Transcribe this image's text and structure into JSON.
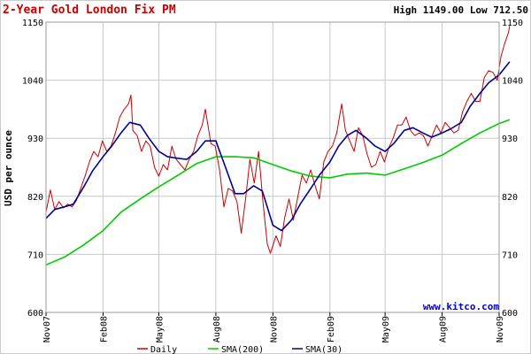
{
  "chart_data": {
    "type": "line",
    "title": "2-Year Gold London Fix PM",
    "high_low": "High 1149.00 Low 712.50",
    "ylabel": "USD per ounce",
    "xlabel": "",
    "ylim": [
      600,
      1150
    ],
    "y_ticks": [
      600,
      710,
      820,
      930,
      1040,
      1150
    ],
    "x_ticks": [
      {
        "label": "Nov07",
        "date": "2007-11-01"
      },
      {
        "label": "Feb08",
        "date": "2008-02-01"
      },
      {
        "label": "May08",
        "date": "2008-05-01"
      },
      {
        "label": "Aug08",
        "date": "2008-08-01"
      },
      {
        "label": "Nov08",
        "date": "2008-11-01"
      },
      {
        "label": "Feb09",
        "date": "2009-02-01"
      },
      {
        "label": "May09",
        "date": "2009-05-01"
      },
      {
        "label": "Aug09",
        "date": "2009-08-01"
      },
      {
        "label": "Nov09",
        "date": "2009-11-01"
      }
    ],
    "xlim": [
      "2007-11-01",
      "2009-11-01"
    ],
    "grid": true,
    "legend_position": "bottom",
    "watermark": "www.kitco.com",
    "colors": {
      "title": "#cc0000",
      "watermark": "#0000cc",
      "grid": "#c8c8c8"
    },
    "series": [
      {
        "name": "Daily",
        "color": "#cc0000",
        "points": [
          [
            "2007-11-01",
            790
          ],
          [
            "2007-11-08",
            832
          ],
          [
            "2007-11-15",
            795
          ],
          [
            "2007-11-22",
            810
          ],
          [
            "2007-11-29",
            798
          ],
          [
            "2007-12-06",
            805
          ],
          [
            "2007-12-13",
            800
          ],
          [
            "2007-12-20",
            812
          ],
          [
            "2007-12-27",
            835
          ],
          [
            "2008-01-03",
            858
          ],
          [
            "2008-01-10",
            885
          ],
          [
            "2008-01-17",
            905
          ],
          [
            "2008-01-24",
            895
          ],
          [
            "2008-01-31",
            925
          ],
          [
            "2008-02-07",
            905
          ],
          [
            "2008-02-14",
            915
          ],
          [
            "2008-02-21",
            940
          ],
          [
            "2008-02-28",
            970
          ],
          [
            "2008-03-06",
            985
          ],
          [
            "2008-03-13",
            995
          ],
          [
            "2008-03-17",
            1012
          ],
          [
            "2008-03-20",
            945
          ],
          [
            "2008-03-27",
            935
          ],
          [
            "2008-04-03",
            905
          ],
          [
            "2008-04-10",
            925
          ],
          [
            "2008-04-17",
            915
          ],
          [
            "2008-04-24",
            875
          ],
          [
            "2008-05-01",
            858
          ],
          [
            "2008-05-08",
            880
          ],
          [
            "2008-05-15",
            870
          ],
          [
            "2008-05-22",
            915
          ],
          [
            "2008-05-29",
            890
          ],
          [
            "2008-06-05",
            880
          ],
          [
            "2008-06-12",
            870
          ],
          [
            "2008-06-19",
            890
          ],
          [
            "2008-06-26",
            905
          ],
          [
            "2008-07-03",
            935
          ],
          [
            "2008-07-10",
            955
          ],
          [
            "2008-07-15",
            985
          ],
          [
            "2008-07-24",
            920
          ],
          [
            "2008-07-31",
            915
          ],
          [
            "2008-08-07",
            870
          ],
          [
            "2008-08-14",
            800
          ],
          [
            "2008-08-21",
            835
          ],
          [
            "2008-08-28",
            830
          ],
          [
            "2008-09-04",
            810
          ],
          [
            "2008-09-11",
            750
          ],
          [
            "2008-09-18",
            815
          ],
          [
            "2008-09-25",
            890
          ],
          [
            "2008-10-02",
            845
          ],
          [
            "2008-10-09",
            905
          ],
          [
            "2008-10-16",
            810
          ],
          [
            "2008-10-23",
            730
          ],
          [
            "2008-10-28",
            712
          ],
          [
            "2008-11-06",
            745
          ],
          [
            "2008-11-13",
            725
          ],
          [
            "2008-11-20",
            780
          ],
          [
            "2008-11-27",
            815
          ],
          [
            "2008-12-04",
            775
          ],
          [
            "2008-12-11",
            818
          ],
          [
            "2008-12-18",
            860
          ],
          [
            "2008-12-25",
            845
          ],
          [
            "2009-01-01",
            870
          ],
          [
            "2009-01-08",
            840
          ],
          [
            "2009-01-15",
            815
          ],
          [
            "2009-01-22",
            885
          ],
          [
            "2009-01-29",
            905
          ],
          [
            "2009-02-05",
            915
          ],
          [
            "2009-02-12",
            940
          ],
          [
            "2009-02-20",
            995
          ],
          [
            "2009-02-26",
            945
          ],
          [
            "2009-03-05",
            925
          ],
          [
            "2009-03-12",
            905
          ],
          [
            "2009-03-19",
            950
          ],
          [
            "2009-03-26",
            935
          ],
          [
            "2009-04-02",
            900
          ],
          [
            "2009-04-09",
            875
          ],
          [
            "2009-04-16",
            880
          ],
          [
            "2009-04-23",
            905
          ],
          [
            "2009-04-30",
            885
          ],
          [
            "2009-05-07",
            912
          ],
          [
            "2009-05-14",
            930
          ],
          [
            "2009-05-21",
            955
          ],
          [
            "2009-05-28",
            955
          ],
          [
            "2009-06-04",
            970
          ],
          [
            "2009-06-11",
            945
          ],
          [
            "2009-06-18",
            935
          ],
          [
            "2009-06-25",
            940
          ],
          [
            "2009-07-02",
            935
          ],
          [
            "2009-07-09",
            915
          ],
          [
            "2009-07-16",
            935
          ],
          [
            "2009-07-23",
            955
          ],
          [
            "2009-07-30",
            940
          ],
          [
            "2009-08-06",
            960
          ],
          [
            "2009-08-13",
            950
          ],
          [
            "2009-08-20",
            940
          ],
          [
            "2009-08-27",
            945
          ],
          [
            "2009-09-03",
            980
          ],
          [
            "2009-09-10",
            1000
          ],
          [
            "2009-09-17",
            1015
          ],
          [
            "2009-09-24",
            1000
          ],
          [
            "2009-10-01",
            1000
          ],
          [
            "2009-10-08",
            1045
          ],
          [
            "2009-10-15",
            1058
          ],
          [
            "2009-10-22",
            1055
          ],
          [
            "2009-10-29",
            1040
          ],
          [
            "2009-11-04",
            1085
          ],
          [
            "2009-11-10",
            1110
          ],
          [
            "2009-11-16",
            1130
          ],
          [
            "2009-11-18",
            1143
          ]
        ]
      },
      {
        "name": "SMA(200)",
        "color": "#00cc00",
        "points": [
          [
            "2007-11-01",
            690
          ],
          [
            "2007-12-01",
            705
          ],
          [
            "2008-01-01",
            728
          ],
          [
            "2008-02-01",
            755
          ],
          [
            "2008-03-01",
            790
          ],
          [
            "2008-04-01",
            815
          ],
          [
            "2008-05-01",
            838
          ],
          [
            "2008-06-01",
            860
          ],
          [
            "2008-07-01",
            882
          ],
          [
            "2008-08-01",
            895
          ],
          [
            "2008-09-01",
            895
          ],
          [
            "2008-10-01",
            893
          ],
          [
            "2008-11-01",
            880
          ],
          [
            "2008-12-01",
            868
          ],
          [
            "2009-01-01",
            858
          ],
          [
            "2009-02-01",
            855
          ],
          [
            "2009-03-01",
            862
          ],
          [
            "2009-04-01",
            864
          ],
          [
            "2009-05-01",
            860
          ],
          [
            "2009-06-01",
            872
          ],
          [
            "2009-07-01",
            884
          ],
          [
            "2009-08-01",
            898
          ],
          [
            "2009-09-01",
            920
          ],
          [
            "2009-10-01",
            940
          ],
          [
            "2009-11-01",
            958
          ],
          [
            "2009-11-18",
            965
          ]
        ]
      },
      {
        "name": "SMA(30)",
        "color": "#000099",
        "points": [
          [
            "2007-11-01",
            778
          ],
          [
            "2007-11-15",
            795
          ],
          [
            "2007-12-01",
            800
          ],
          [
            "2007-12-15",
            805
          ],
          [
            "2008-01-01",
            838
          ],
          [
            "2008-01-15",
            868
          ],
          [
            "2008-02-01",
            895
          ],
          [
            "2008-02-15",
            915
          ],
          [
            "2008-03-01",
            940
          ],
          [
            "2008-03-15",
            960
          ],
          [
            "2008-04-01",
            955
          ],
          [
            "2008-04-15",
            930
          ],
          [
            "2008-05-01",
            905
          ],
          [
            "2008-05-15",
            895
          ],
          [
            "2008-06-01",
            892
          ],
          [
            "2008-06-15",
            890
          ],
          [
            "2008-07-01",
            905
          ],
          [
            "2008-07-15",
            925
          ],
          [
            "2008-08-01",
            925
          ],
          [
            "2008-08-15",
            880
          ],
          [
            "2008-09-01",
            825
          ],
          [
            "2008-09-15",
            825
          ],
          [
            "2008-10-01",
            840
          ],
          [
            "2008-10-15",
            830
          ],
          [
            "2008-11-01",
            765
          ],
          [
            "2008-11-15",
            755
          ],
          [
            "2008-12-01",
            775
          ],
          [
            "2008-12-15",
            805
          ],
          [
            "2009-01-01",
            835
          ],
          [
            "2009-01-15",
            860
          ],
          [
            "2009-02-01",
            885
          ],
          [
            "2009-02-15",
            915
          ],
          [
            "2009-03-01",
            935
          ],
          [
            "2009-03-15",
            945
          ],
          [
            "2009-04-01",
            930
          ],
          [
            "2009-04-15",
            915
          ],
          [
            "2009-05-01",
            905
          ],
          [
            "2009-05-15",
            920
          ],
          [
            "2009-06-01",
            945
          ],
          [
            "2009-06-15",
            950
          ],
          [
            "2009-07-01",
            940
          ],
          [
            "2009-07-15",
            932
          ],
          [
            "2009-08-01",
            940
          ],
          [
            "2009-08-15",
            948
          ],
          [
            "2009-09-01",
            960
          ],
          [
            "2009-09-15",
            990
          ],
          [
            "2009-10-01",
            1015
          ],
          [
            "2009-10-15",
            1035
          ],
          [
            "2009-11-01",
            1050
          ],
          [
            "2009-11-18",
            1075
          ]
        ]
      }
    ]
  }
}
